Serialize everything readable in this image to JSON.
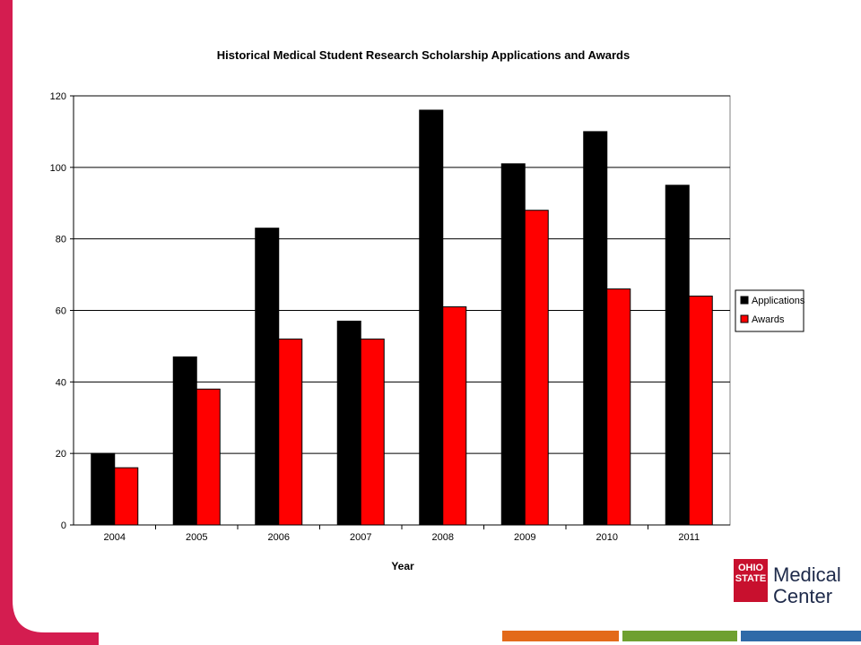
{
  "colors": {
    "side_band": "#d41d50",
    "bar_orange": "#e36a1a",
    "bar_green": "#6fa030",
    "bar_blue": "#2f6aa8",
    "applications": "#000000",
    "awards": "#ff0000"
  },
  "logo": {
    "mark_text": "OHIO STATE",
    "line1": "Medical",
    "line2": "Center"
  },
  "chart_data": {
    "type": "bar",
    "title": "Historical Medical Student Research Scholarship Applications and Awards",
    "xlabel": "Year",
    "ylabel": "",
    "categories": [
      "2004",
      "2005",
      "2006",
      "2007",
      "2008",
      "2009",
      "2010",
      "2011"
    ],
    "series": [
      {
        "name": "Applications",
        "values": [
          20,
          47,
          83,
          57,
          116,
          101,
          110,
          95
        ],
        "color": "#000000"
      },
      {
        "name": "Awards",
        "values": [
          16,
          38,
          52,
          52,
          61,
          88,
          66,
          64
        ],
        "color": "#ff0000"
      }
    ],
    "ylim": [
      0,
      120
    ],
    "yticks": [
      0,
      20,
      40,
      60,
      80,
      100,
      120
    ],
    "grid": true,
    "legend": "right"
  }
}
